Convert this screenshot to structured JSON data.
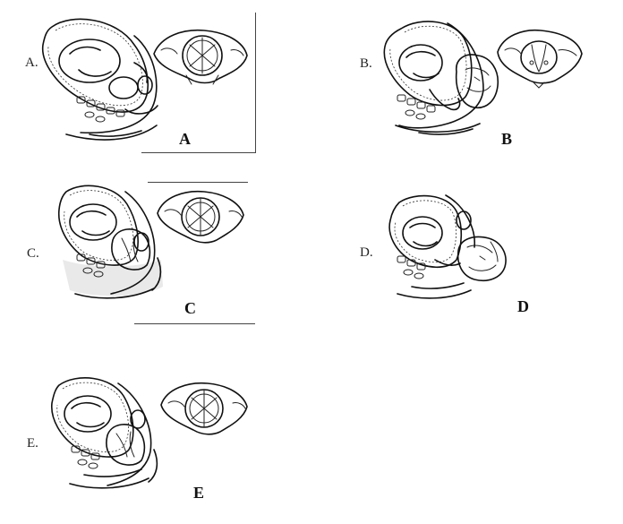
{
  "panels": [
    {
      "letter_small": "A.",
      "letter_big": "A"
    },
    {
      "letter_small": "B.",
      "letter_big": "B"
    },
    {
      "letter_small": "C.",
      "letter_big": "C"
    },
    {
      "letter_small": "D.",
      "letter_big": "D"
    },
    {
      "letter_small": "E.",
      "letter_big": "E"
    }
  ]
}
